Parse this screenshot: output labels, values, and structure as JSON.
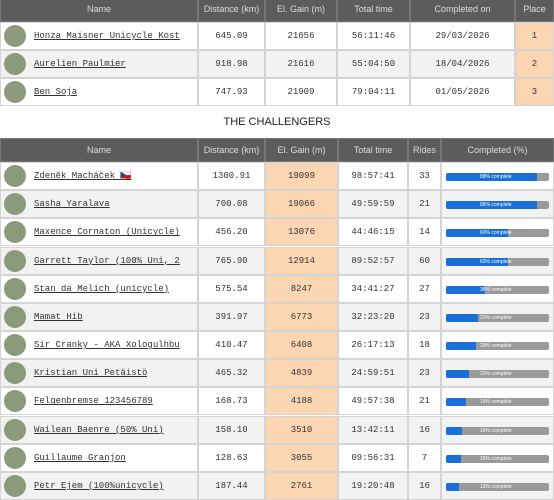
{
  "finishers": {
    "headers": [
      "Name",
      "Distance (km)",
      "El. Gain (m)",
      "Total time",
      "Completed on",
      "Place"
    ],
    "rows": [
      [
        "Honza Maisner Unicycle Kost",
        "645.09",
        "21656",
        "56:11:46",
        "29/03/2026",
        "1"
      ],
      [
        "Aurelien Paulmier",
        "918.98",
        "21616",
        "55:04:50",
        "18/04/2026",
        "2"
      ],
      [
        "Ben Soja",
        "747.93",
        "21909",
        "79:04:11",
        "01/05/2026",
        "3"
      ]
    ]
  },
  "section_title": "THE CHALLENGERS",
  "challengers": {
    "headers": [
      "Name",
      "Distance (km)",
      "El. Gain (m)",
      "Total time",
      "Rides",
      "Completed (%)"
    ],
    "rows": [
      {
        "cells": [
          "Zdeněk Macháček 🇨🇿",
          "1300.91",
          "19099",
          "98:57:41",
          "33"
        ],
        "completed": {
          "value": 88,
          "label": "88% complete"
        }
      },
      {
        "cells": [
          "Sasha Yaralava",
          "700.08",
          "19066",
          "49:59:59",
          "21"
        ],
        "completed": {
          "value": 88,
          "label": "88% complete"
        }
      },
      {
        "cells": [
          "Maxence Cornaton (Unicycle)",
          "456.20",
          "13076",
          "44:46:15",
          "14"
        ],
        "completed": {
          "value": 60,
          "label": "60% complete"
        }
      },
      {
        "cells": [
          "Garrett Taylor (100% Uni, 2",
          "765.90",
          "12914",
          "89:52:57",
          "60"
        ],
        "completed": {
          "value": 60,
          "label": "60% complete"
        }
      },
      {
        "cells": [
          "Stan da Melich (unicycle)",
          "575.54",
          "8247",
          "34:41:27",
          "27"
        ],
        "completed": {
          "value": 38,
          "label": "38% complete"
        }
      },
      {
        "cells": [
          "Mamat Hib",
          "391.97",
          "6773",
          "32:23:20",
          "23"
        ],
        "completed": {
          "value": 31,
          "label": "31% complete"
        }
      },
      {
        "cells": [
          "Sir Cranky - AKA Xologulhbu",
          "410.47",
          "6408",
          "26:17:13",
          "18"
        ],
        "completed": {
          "value": 29,
          "label": "29% complete"
        }
      },
      {
        "cells": [
          "Kristian Uni Petäistö",
          "465.32",
          "4839",
          "24:59:51",
          "23"
        ],
        "completed": {
          "value": 22,
          "label": "22% complete"
        }
      },
      {
        "cells": [
          "Felgenbremse 123456789",
          "168.73",
          "4188",
          "49:57:38",
          "21"
        ],
        "completed": {
          "value": 19,
          "label": "19% complete"
        }
      },
      {
        "cells": [
          "Wailean Baenre (50% Uni)",
          "158.10",
          "3510",
          "13:42:11",
          "16"
        ],
        "completed": {
          "value": 16,
          "label": "16% complete"
        }
      },
      {
        "cells": [
          "Guillaume Granjon",
          "128.63",
          "3055",
          "09:56:31",
          "7"
        ],
        "completed": {
          "value": 15,
          "label": "15% complete"
        }
      },
      {
        "cells": [
          "Petr Ejem (100%unicycle)",
          "187.44",
          "2761",
          "19:20:48",
          "16"
        ],
        "completed": {
          "value": 13,
          "label": "13% complete"
        }
      }
    ]
  }
}
